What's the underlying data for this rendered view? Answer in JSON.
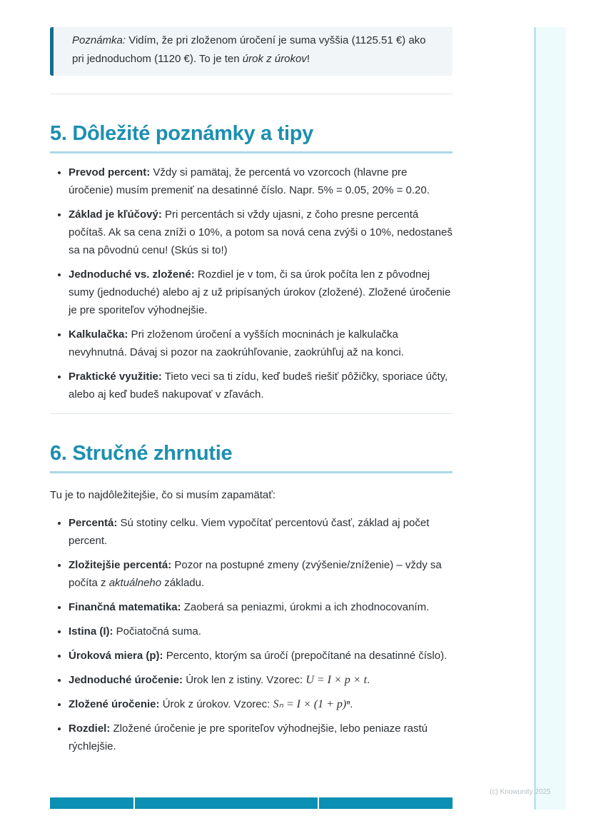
{
  "note": {
    "label": "Poznámka:",
    "text1": " Vidím, že pri zloženom úročení je suma vyššia (1125.51 €) ako pri jednoduchom (1120 €). To je ten ",
    "italic": "úrok z úrokov",
    "text2": "!"
  },
  "section5": {
    "title": "5. Dôležité poznámky a tipy",
    "items": [
      {
        "label": "Prevod percent:",
        "parts": [
          {
            "t": " Vždy si pamätaj, že percentá vo vzorcoch (hlavne pre úročenie) musím premeniť na desatinné číslo. Napr. 5% = 0.05, 20% = 0.20."
          }
        ]
      },
      {
        "label": "Základ je kľúčový:",
        "parts": [
          {
            "t": " Pri percentách si vždy ujasni, z čoho presne percentá počítaš. Ak sa cena zníži o 10%, a potom sa nová cena zvýši o 10%, nedostaneš sa na pôvodnú cenu! (Skús si to!)"
          }
        ]
      },
      {
        "label": "Jednoduché vs. zložené:",
        "parts": [
          {
            "t": " Rozdiel je v tom, či sa úrok počíta len z pôvodnej sumy (jednoduché) alebo aj z už pripísaných úrokov (zložené). Zložené úročenie je pre sporiteľov výhodnejšie."
          }
        ]
      },
      {
        "label": "Kalkulačka:",
        "parts": [
          {
            "t": " Pri zloženom úročení a vyšších mocninách je kalkulačka nevyhnutná. Dávaj si pozor na zaokrúhľovanie, zaokrúhľuj až na konci."
          }
        ]
      },
      {
        "label": "Praktické využitie:",
        "parts": [
          {
            "t": " Tieto veci sa ti zídu, keď budeš riešiť pôžičky, sporiace účty, alebo aj keď budeš nakupovať v zľavách."
          }
        ]
      }
    ]
  },
  "section6": {
    "title": "6. Stručné zhrnutie",
    "intro": "Tu je to najdôležitejšie, čo si musím zapamätať:",
    "items": [
      {
        "label": "Percentá:",
        "parts": [
          {
            "t": " Sú stotiny celku. Viem vypočítať percentovú časť, základ aj počet percent."
          }
        ]
      },
      {
        "label": "Zložitejšie percentá:",
        "parts": [
          {
            "t": " Pozor na postupné zmeny (zvýšenie/zníženie) – vždy sa počíta z "
          },
          {
            "t": "aktuálneho",
            "style": "i"
          },
          {
            "t": " základu."
          }
        ]
      },
      {
        "label": "Finančná matematika:",
        "parts": [
          {
            "t": " Zaoberá sa peniazmi, úrokmi a ich zhodnocovaním."
          }
        ]
      },
      {
        "label": "Istina (I):",
        "parts": [
          {
            "t": " Počiatočná suma."
          }
        ]
      },
      {
        "label": "Úroková miera (p):",
        "parts": [
          {
            "t": " Percento, ktorým sa úročí (prepočítané na desatinné číslo)."
          }
        ]
      },
      {
        "label": "Jednoduché úročenie:",
        "parts": [
          {
            "t": " Úrok len z istiny. Vzorec: "
          },
          {
            "t": "U = I × p × t",
            "style": "m"
          },
          {
            "t": "."
          }
        ]
      },
      {
        "label": "Zložené úročenie:",
        "parts": [
          {
            "t": " Úrok z úrokov. Vzorec: "
          },
          {
            "t": "Sₙ = I × (1 + p)ⁿ",
            "style": "m"
          },
          {
            "t": "."
          }
        ]
      },
      {
        "label": "Rozdiel:",
        "parts": [
          {
            "t": " Zložené úročenie je pre sporiteľov výhodnejšie, lebo peniaze rastú rýchlejšie."
          }
        ]
      }
    ]
  },
  "footer": {
    "copyright": "(c) Knowunity 2025"
  },
  "colors": {
    "heading": "#1c8fb0",
    "note_border": "#136f8c",
    "footer_bar": "#0b8fb2"
  }
}
